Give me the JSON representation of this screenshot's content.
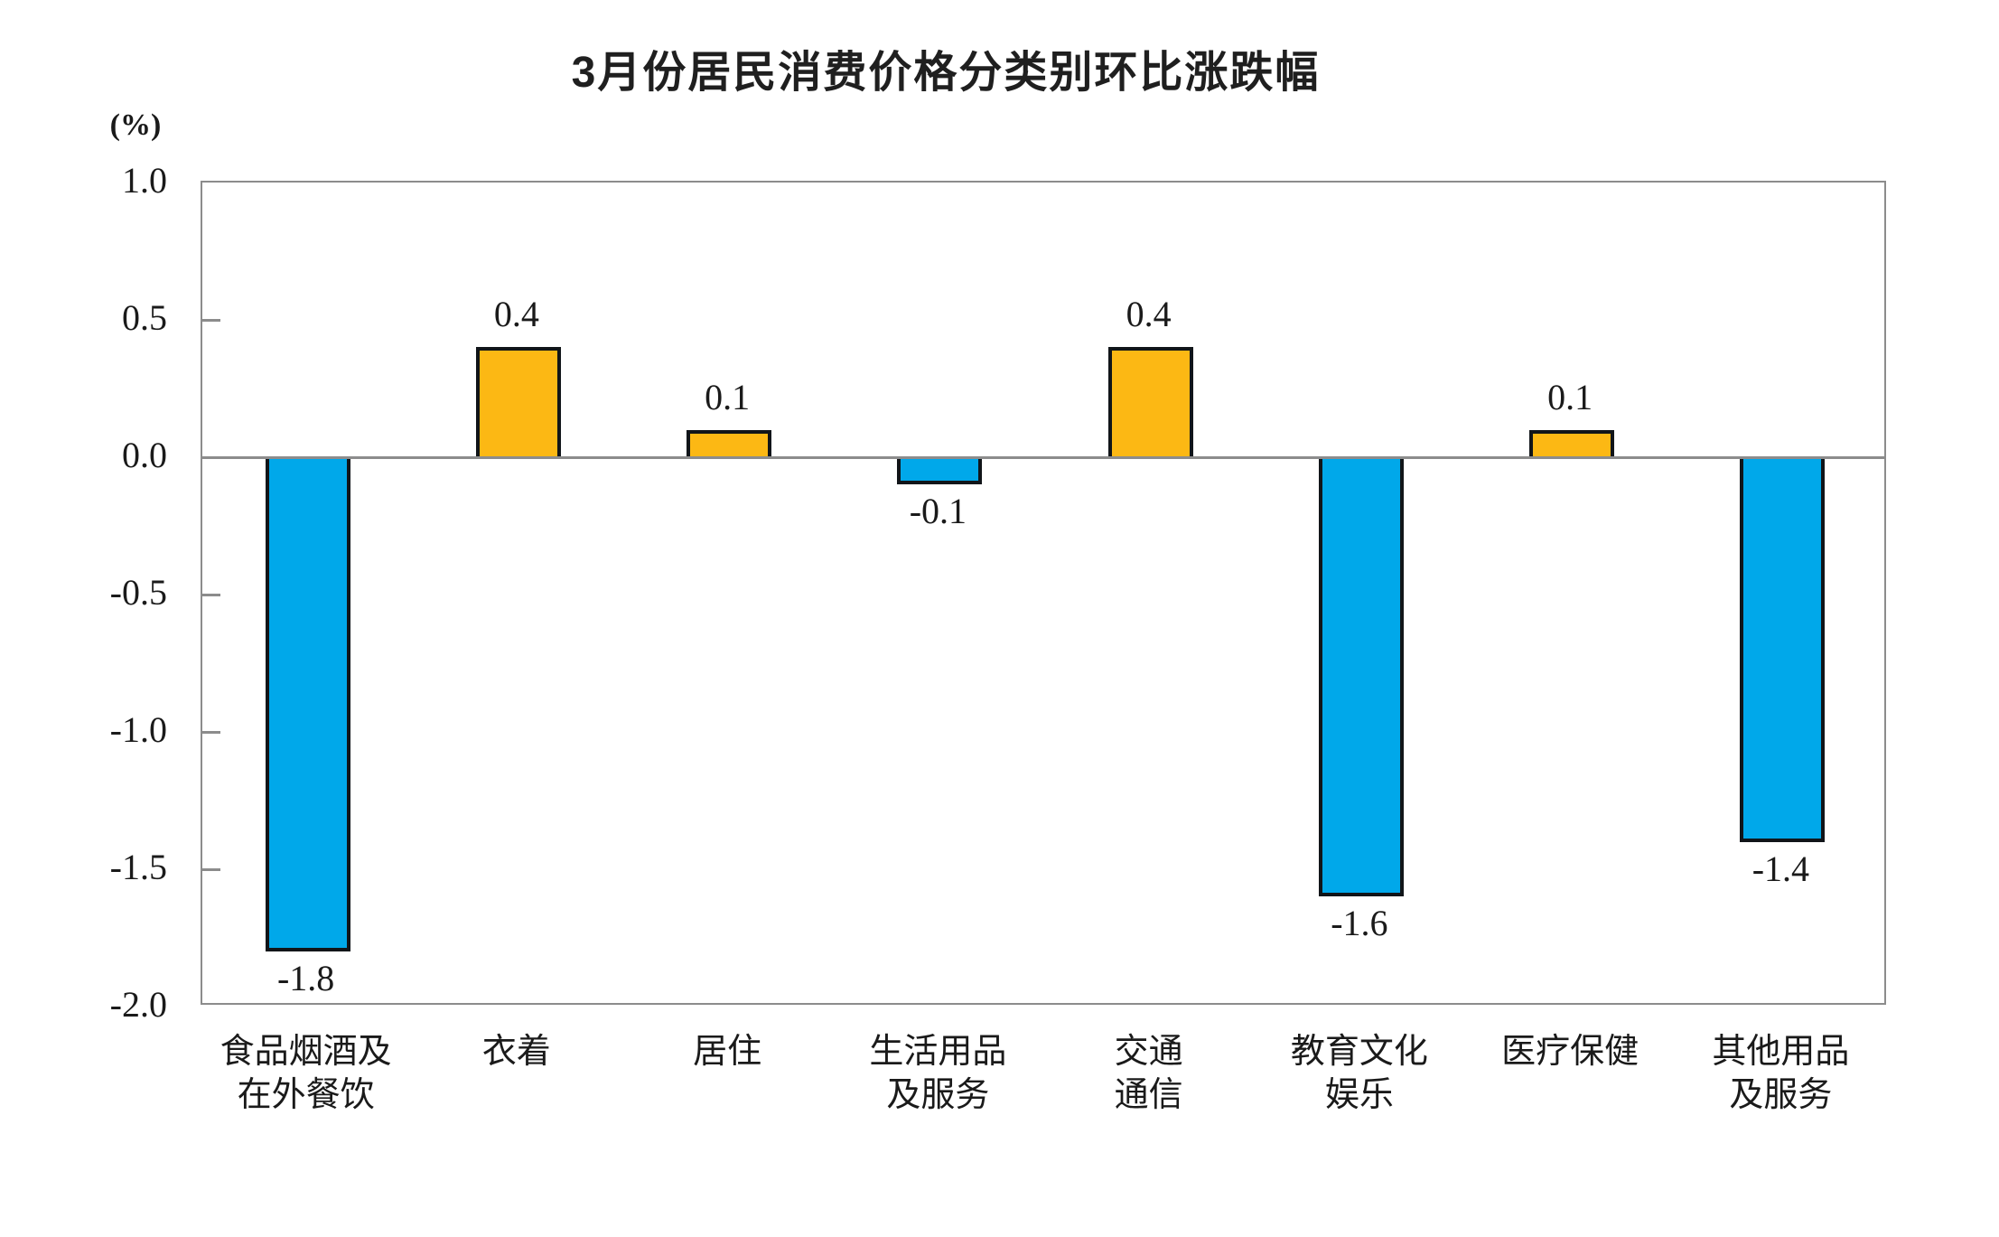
{
  "chart_data": {
    "type": "bar",
    "title": "3月份居民消费价格分类别环比涨跌幅",
    "ylabel": "(%)",
    "xlabel": "",
    "ylim": [
      -2.0,
      1.0
    ],
    "ytick_labels": [
      "1.0",
      "0.5",
      "0.0",
      "-0.5",
      "-1.0",
      "-1.5",
      "-2.0"
    ],
    "categories": [
      "食品烟酒及在外餐饮",
      "衣着",
      "居住",
      "生活用品及服务",
      "交通通信",
      "教育文化娱乐",
      "医疗保健",
      "其他用品及服务"
    ],
    "category_lines": [
      [
        "食品烟酒及",
        "在外餐饮"
      ],
      [
        "衣着"
      ],
      [
        "居住"
      ],
      [
        "生活用品",
        "及服务"
      ],
      [
        "交通",
        "通信"
      ],
      [
        "教育文化",
        "娱乐"
      ],
      [
        "医疗保健"
      ],
      [
        "其他用品",
        "及服务"
      ]
    ],
    "values": [
      -1.8,
      0.4,
      0.1,
      -0.1,
      0.4,
      -1.6,
      0.1,
      -1.4
    ],
    "value_labels": [
      "-1.8",
      "0.4",
      "0.1",
      "-0.1",
      "0.4",
      "-1.6",
      "0.1",
      "-1.4"
    ],
    "colors": {
      "positive": "#FCB814",
      "negative": "#00A8EA",
      "bar_border": "#111519",
      "axis": "#8C8C8C",
      "text": "#1A1A1A"
    },
    "grid": false,
    "legend": false
  }
}
